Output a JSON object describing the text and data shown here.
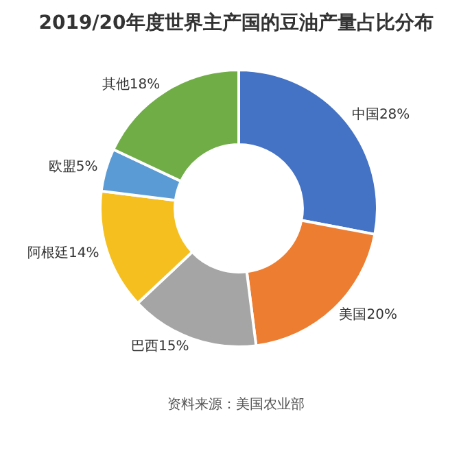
{
  "chart_data": {
    "type": "donut",
    "title": "2019/20年度世界主产国的豆油产量占比分布",
    "categories": [
      "中国",
      "美国",
      "巴西",
      "阿根廷",
      "欧盟",
      "其他"
    ],
    "values": [
      28,
      20,
      15,
      14,
      5,
      18
    ],
    "value_labels": [
      "28%",
      "20%",
      "15%",
      "14%",
      "5%",
      "18%"
    ],
    "colors": [
      "#4472c4",
      "#ed7d31",
      "#a5a5a5",
      "#f5bf1f",
      "#5b9bd5",
      "#70ad47"
    ],
    "legend": false,
    "annotations": [
      "资料来源：美国农业部"
    ]
  }
}
